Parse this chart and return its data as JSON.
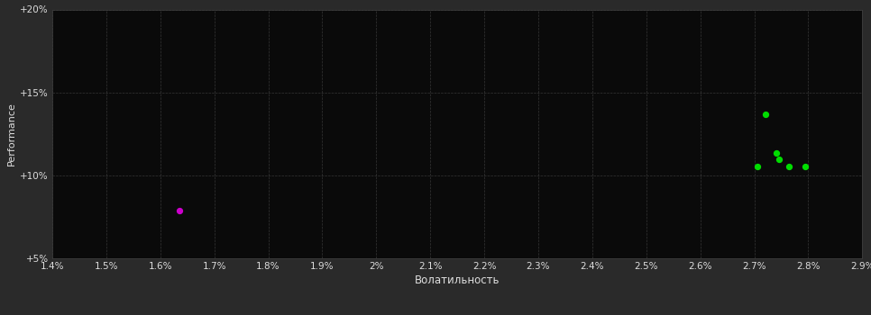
{
  "background_color": "#2a2a2a",
  "plot_bg_color": "#0a0a0a",
  "grid_color": "#404040",
  "text_color": "#dddddd",
  "xlabel": "Волатильность",
  "ylabel": "Performance",
  "xlim": [
    0.014,
    0.029
  ],
  "ylim": [
    0.05,
    0.2
  ],
  "xticks": [
    0.014,
    0.015,
    0.016,
    0.017,
    0.018,
    0.019,
    0.02,
    0.021,
    0.022,
    0.023,
    0.024,
    0.025,
    0.026,
    0.027,
    0.028,
    0.029
  ],
  "yticks": [
    0.05,
    0.1,
    0.15,
    0.2
  ],
  "green_points": [
    [
      0.0272,
      0.137
    ],
    [
      0.0274,
      0.1135
    ],
    [
      0.02745,
      0.1095
    ],
    [
      0.02705,
      0.1055
    ],
    [
      0.02765,
      0.1055
    ],
    [
      0.02795,
      0.1055
    ]
  ],
  "magenta_points": [
    [
      0.01635,
      0.079
    ]
  ],
  "point_size": 18,
  "green_color": "#00dd00",
  "magenta_color": "#cc00cc"
}
